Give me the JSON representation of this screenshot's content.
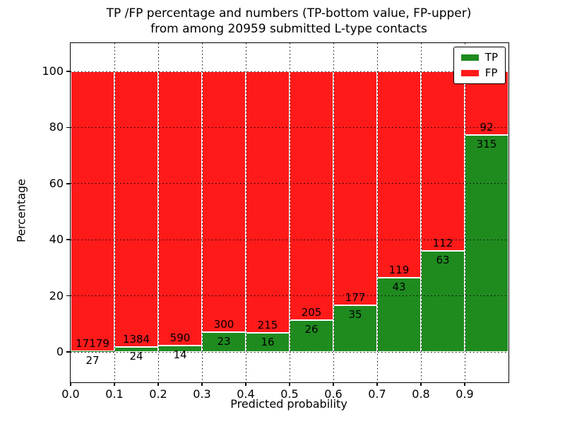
{
  "header": {
    "title_line1": "TP /FP percentage and numbers (TP-bottom value, FP-upper)",
    "title_line2": "from among 20959 submitted L-type contacts"
  },
  "chart_data": {
    "type": "bar",
    "variant": "stacked-percentage",
    "title": "TP /FP percentage and numbers (TP-bottom value, FP-upper)\nfrom among 20959 submitted L-type contacts",
    "xlabel": "Predicted probability",
    "ylabel": "Percentage",
    "total_contacts": 20959,
    "bin_width": 0.1,
    "categories": [
      "0.0-0.1",
      "0.1-0.2",
      "0.2-0.3",
      "0.3-0.4",
      "0.4-0.5",
      "0.5-0.6",
      "0.6-0.7",
      "0.7-0.8",
      "0.8-0.9",
      "0.9-1.0"
    ],
    "x_tick_labels": [
      "0.0",
      "0.1",
      "0.2",
      "0.3",
      "0.4",
      "0.5",
      "0.6",
      "0.7",
      "0.8",
      "0.9"
    ],
    "y_tick_labels": [
      "0",
      "20",
      "40",
      "60",
      "80",
      "100"
    ],
    "y_ticks": [
      0,
      20,
      40,
      60,
      80,
      100
    ],
    "xlim": [
      0.0,
      1.0
    ],
    "ylim": [
      -11,
      110
    ],
    "grid": {
      "on": true,
      "style": "dotted",
      "color": "#000000"
    },
    "series": [
      {
        "name": "TP",
        "color": "#1f8b1f",
        "values": [
          27,
          24,
          14,
          23,
          16,
          26,
          35,
          43,
          63,
          315
        ]
      },
      {
        "name": "FP",
        "color": "#ff1a1a",
        "values": [
          17179,
          1384,
          590,
          300,
          215,
          205,
          177,
          119,
          112,
          92
        ]
      }
    ],
    "bar_percentages_note": "each bin stacked to 100%; green height = TP/(TP+FP)*100",
    "legend": {
      "position": "upper-right",
      "entries": [
        {
          "label": "TP",
          "color": "#1f8b1f"
        },
        {
          "label": "FP",
          "color": "#ff1a1a"
        }
      ]
    }
  }
}
